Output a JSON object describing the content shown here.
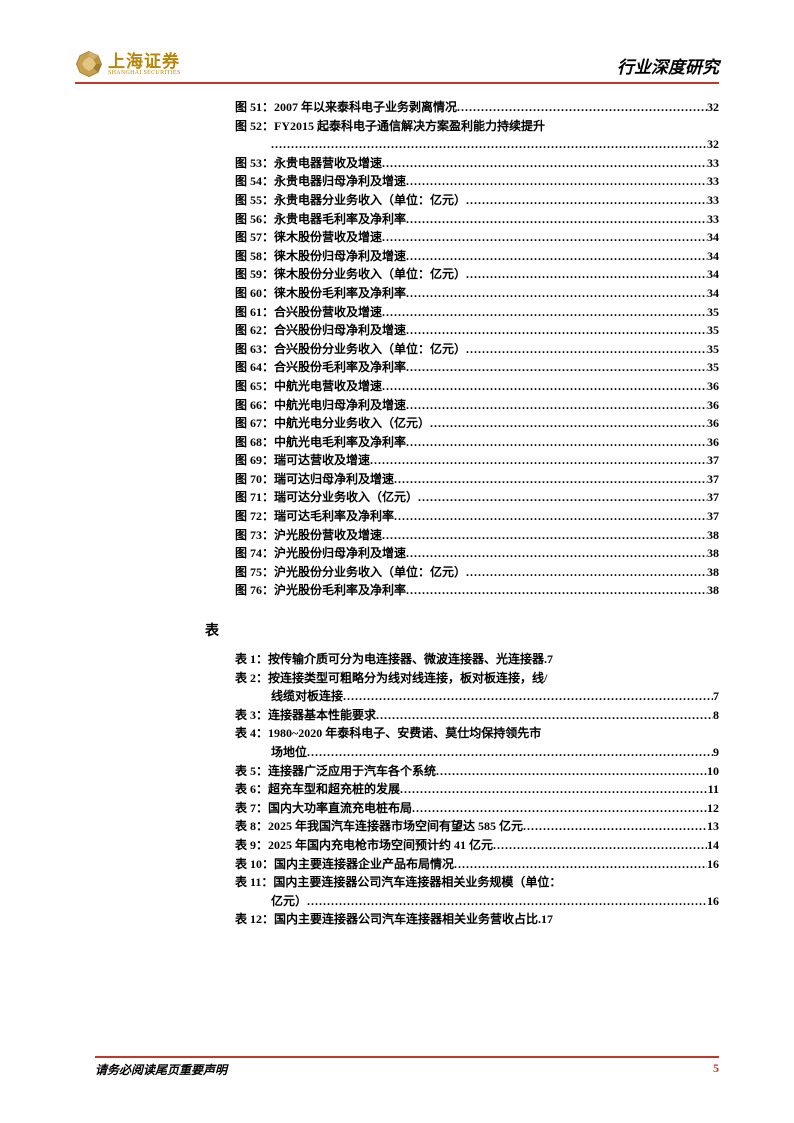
{
  "header": {
    "logo_cn": "上海证券",
    "logo_en": "SHANGHAI SECURITIES",
    "title": "行业深度研究"
  },
  "colors": {
    "accent": "#c0392b",
    "gold": "#b8860b",
    "text": "#000000"
  },
  "figures": [
    {
      "label": "图 51：2007 年以来泰科电子业务剥离情况",
      "page": "32"
    },
    {
      "label": "图 52：FY2015 起泰科电子通信解决方案盈利能力持续提升",
      "page": "32",
      "wrap": true
    },
    {
      "label": "图 53：永贵电器营收及增速",
      "page": "33"
    },
    {
      "label": "图 54：永贵电器归母净利及增速",
      "page": "33"
    },
    {
      "label": "图 55：永贵电器分业务收入（单位：亿元）",
      "page": "33"
    },
    {
      "label": "图 56：永贵电器毛利率及净利率",
      "page": "33"
    },
    {
      "label": "图 57：徕木股份营收及增速",
      "page": "34"
    },
    {
      "label": "图 58：徕木股份归母净利及增速",
      "page": "34"
    },
    {
      "label": "图 59：徕木股份分业务收入（单位：亿元）",
      "page": "34"
    },
    {
      "label": "图 60：徕木股份毛利率及净利率",
      "page": "34"
    },
    {
      "label": "图 61：合兴股份营收及增速",
      "page": "35"
    },
    {
      "label": "图 62：合兴股份归母净利及增速",
      "page": "35"
    },
    {
      "label": "图 63：合兴股份分业务收入（单位：亿元）",
      "page": "35"
    },
    {
      "label": "图 64：合兴股份毛利率及净利率",
      "page": "35"
    },
    {
      "label": "图 65：中航光电营收及增速",
      "page": "36"
    },
    {
      "label": "图 66：中航光电归母净利及增速",
      "page": "36"
    },
    {
      "label": "图 67：中航光电分业务收入（亿元）",
      "page": "36"
    },
    {
      "label": "图 68：中航光电毛利率及净利率",
      "page": "36"
    },
    {
      "label": "图 69：瑞可达营收及增速",
      "page": "37"
    },
    {
      "label": "图 70：瑞可达归母净利及增速",
      "page": "37"
    },
    {
      "label": "图 71：瑞可达分业务收入（亿元）",
      "page": "37"
    },
    {
      "label": "图 72：瑞可达毛利率及净利率",
      "page": "37"
    },
    {
      "label": "图 73：沪光股份营收及增速",
      "page": "38"
    },
    {
      "label": "图 74：沪光股份归母净利及增速",
      "page": "38"
    },
    {
      "label": "图 75：沪光股份分业务收入（单位：亿元）",
      "page": "38"
    },
    {
      "label": "图 76：沪光股份毛利率及净利率",
      "page": "38"
    }
  ],
  "tables_heading": "表",
  "tables": [
    {
      "label": "表 1：按传输介质可分为电连接器、微波连接器、光连接器",
      "page": ".7",
      "nodots": true
    },
    {
      "label": "表 2：按连接类型可粗略分为线对线连接，板对板连接，线/",
      "cont": "线缆对板连接",
      "page": "7"
    },
    {
      "label": "表 3：连接器基本性能要求",
      "page": "8"
    },
    {
      "label": "表 4：1980~2020 年泰科电子、安费诺、莫仕均保持领先市",
      "cont": "场地位",
      "page": "9"
    },
    {
      "label": "表 5：连接器广泛应用于汽车各个系统",
      "page": "10"
    },
    {
      "label": "表 6：超充车型和超充桩的发展",
      "page": "11"
    },
    {
      "label": "表 7：国内大功率直流充电桩布局",
      "page": "12"
    },
    {
      "label": "表 8：2025 年我国汽车连接器市场空间有望达 585 亿元",
      "page": "13",
      "tightdots": true
    },
    {
      "label": "表 9：2025 年国内充电枪市场空间预计约 41 亿元",
      "page": "14"
    },
    {
      "label": "表 10：国内主要连接器企业产品布局情况",
      "page": "16"
    },
    {
      "label": "表 11：国内主要连接器公司汽车连接器相关业务规模（单位：",
      "cont": "亿元）",
      "page": "16"
    },
    {
      "label": "表 12：国内主要连接器公司汽车连接器相关业务营收占比",
      "page": ".17",
      "nodots": true
    }
  ],
  "footer": {
    "text": "请务必阅读尾页重要声明",
    "page": "5"
  }
}
